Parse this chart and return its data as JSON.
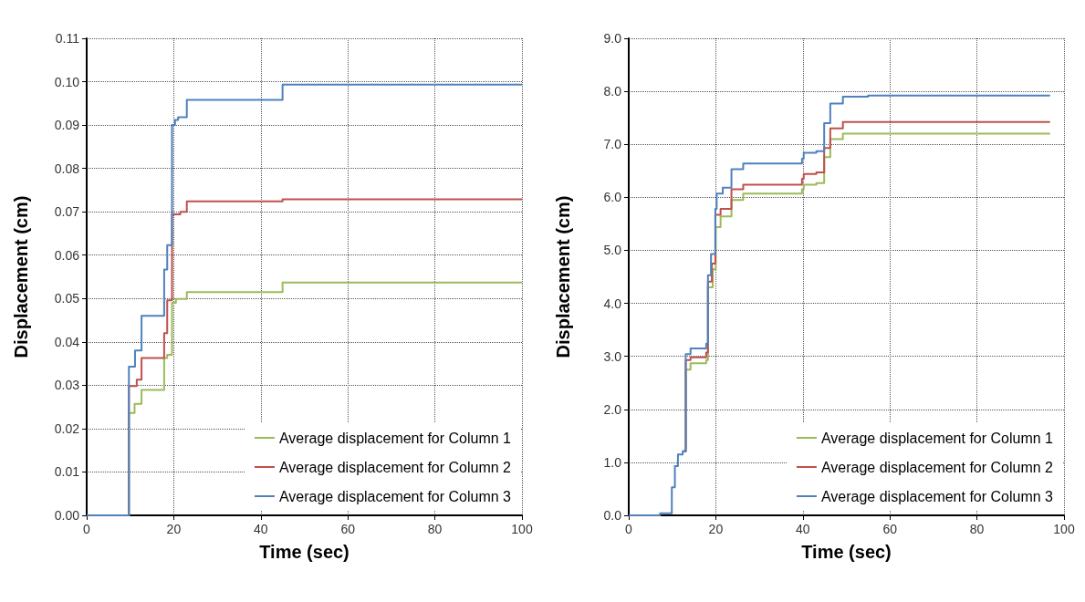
{
  "chart_data": [
    {
      "type": "step",
      "xlabel": "Time (sec)",
      "ylabel": "Displacement (cm)",
      "xlim": [
        0,
        100
      ],
      "xticks": [
        0,
        20,
        40,
        60,
        80,
        100
      ],
      "ylim": [
        0,
        0.11
      ],
      "yticks": [
        {
          "value": 0,
          "label": "0.00"
        },
        {
          "value": 0.01,
          "label": "0.01"
        },
        {
          "value": 0.02,
          "label": "0.02"
        },
        {
          "value": 0.03,
          "label": "0.03"
        },
        {
          "value": 0.04,
          "label": "0.04"
        },
        {
          "value": 0.05,
          "label": "0.05"
        },
        {
          "value": 0.06,
          "label": "0.06"
        },
        {
          "value": 0.07,
          "label": "0.07"
        },
        {
          "value": 0.08,
          "label": "0.08"
        },
        {
          "value": 0.09,
          "label": "0.09"
        },
        {
          "value": 0.1,
          "label": "0.10"
        },
        {
          "value": 0.11,
          "label": "0.11"
        }
      ],
      "grid": true,
      "legend": "bottom right",
      "marker": "none",
      "line_style": "solid",
      "series": [
        {
          "name": "Average displacement for Column 1",
          "color": "#9bbb59",
          "x": [
            0,
            9.7,
            11,
            12.6,
            17.8,
            18.5,
            19.6,
            20.5,
            23,
            45,
            100
          ],
          "values": [
            0,
            0.0236,
            0.0257,
            0.0289,
            0.0363,
            0.037,
            0.049,
            0.0499,
            0.0515,
            0.0537,
            0.0537
          ]
        },
        {
          "name": "Average displacement for Column 2",
          "color": "#c0504d",
          "x": [
            0,
            9.7,
            11.5,
            12.6,
            17.8,
            18.5,
            19.6,
            21.5,
            23,
            45,
            100
          ],
          "values": [
            0,
            0.0298,
            0.0313,
            0.0363,
            0.042,
            0.0496,
            0.0694,
            0.07,
            0.0724,
            0.0729,
            0.0729
          ]
        },
        {
          "name": "Average displacement for Column 3",
          "color": "#4f81bd",
          "x": [
            0,
            9.7,
            11.1,
            12.6,
            17.8,
            18.5,
            19.6,
            20.3,
            21,
            23,
            45,
            100
          ],
          "values": [
            0,
            0.0343,
            0.038,
            0.046,
            0.0567,
            0.0623,
            0.09,
            0.0912,
            0.0918,
            0.0958,
            0.0993,
            0.0993
          ]
        }
      ]
    },
    {
      "type": "step",
      "xlabel": "Time (sec)",
      "ylabel": "Displacement (cm)",
      "xlim": [
        0,
        100
      ],
      "xticks": [
        0,
        20,
        40,
        60,
        80,
        100
      ],
      "ylim": [
        0,
        9
      ],
      "yticks": [
        {
          "value": 0,
          "label": "0.0"
        },
        {
          "value": 1,
          "label": "1.0"
        },
        {
          "value": 2,
          "label": "2.0"
        },
        {
          "value": 3,
          "label": "3.0"
        },
        {
          "value": 4,
          "label": "4.0"
        },
        {
          "value": 5,
          "label": "5.0"
        },
        {
          "value": 6,
          "label": "6.0"
        },
        {
          "value": 7,
          "label": "7.0"
        },
        {
          "value": 8,
          "label": "8.0"
        },
        {
          "value": 9,
          "label": "9.0"
        }
      ],
      "grid": true,
      "legend": "bottom right",
      "marker": "none",
      "line_style": "solid",
      "series": [
        {
          "name": "Average displacement for Column 1",
          "color": "#9bbb59",
          "x": [
            12.4,
            13.1,
            14.2,
            17.8,
            18.2,
            19.3,
            20,
            21.1,
            23.6,
            26.3,
            39.8,
            40.2,
            43.1,
            44.9,
            46.3,
            49.2,
            96.8
          ],
          "values": [
            1.21,
            2.75,
            2.87,
            2.93,
            4.3,
            4.64,
            5.44,
            5.64,
            5.95,
            6.07,
            6.15,
            6.24,
            6.27,
            6.76,
            7.1,
            7.2,
            7.2
          ]
        },
        {
          "name": "Average displacement for Column 2",
          "color": "#c0504d",
          "x": [
            12.4,
            13.1,
            14.2,
            17.8,
            18.2,
            19.1,
            19.9,
            21.1,
            23.6,
            26.3,
            39.8,
            40.2,
            43.1,
            44.9,
            46.3,
            49.2,
            96.8
          ],
          "values": [
            1.21,
            2.93,
            2.98,
            3.07,
            4.41,
            4.75,
            5.67,
            5.78,
            6.15,
            6.24,
            6.35,
            6.44,
            6.47,
            6.93,
            7.3,
            7.42,
            7.43
          ]
        },
        {
          "name": "Average displacement for Column 3",
          "color": "#4f81bd",
          "x": [
            0,
            7.2,
            9.9,
            10.6,
            11.3,
            12.4,
            13.1,
            14.2,
            17.8,
            18.2,
            18.9,
            19.9,
            20.2,
            21.6,
            23.6,
            26.3,
            39.8,
            40.2,
            43.1,
            44.9,
            46.3,
            49.2,
            55,
            96.8
          ],
          "values": [
            0,
            0.04,
            0.53,
            0.93,
            1.15,
            1.21,
            3.04,
            3.15,
            3.24,
            4.53,
            4.93,
            5.78,
            6.07,
            6.18,
            6.53,
            6.64,
            6.73,
            6.84,
            6.87,
            7.4,
            7.77,
            7.9,
            7.92,
            7.92
          ]
        }
      ]
    }
  ]
}
